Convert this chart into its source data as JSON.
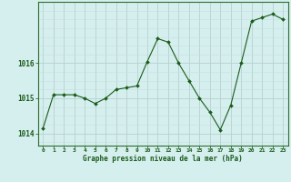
{
  "x": [
    0,
    1,
    2,
    3,
    4,
    5,
    6,
    7,
    8,
    9,
    10,
    11,
    12,
    13,
    14,
    15,
    16,
    17,
    18,
    19,
    20,
    21,
    22,
    23
  ],
  "y": [
    1014.15,
    1015.1,
    1015.1,
    1015.1,
    1015.0,
    1014.85,
    1015.0,
    1015.25,
    1015.3,
    1015.35,
    1016.05,
    1016.7,
    1016.6,
    1016.0,
    1015.5,
    1015.0,
    1014.6,
    1014.1,
    1014.8,
    1016.0,
    1017.2,
    1017.3,
    1017.4,
    1017.25
  ],
  "line_color": "#1a5c1a",
  "marker": "D",
  "marker_size": 2.0,
  "bg_color": "#d5eeee",
  "grid_color_major": "#b8d0d0",
  "grid_color_minor": "#c8dede",
  "spine_color": "#2d6e2d",
  "xlabel": "Graphe pression niveau de la mer (hPa)",
  "xlabel_color": "#1a5c1a",
  "tick_color": "#1a5c1a",
  "ytick_labels": [
    "1014",
    "1015",
    "1016"
  ],
  "ytick_values": [
    1014,
    1015,
    1016
  ],
  "ylim": [
    1013.65,
    1017.75
  ],
  "xlim": [
    -0.5,
    23.5
  ],
  "xtick_values": [
    0,
    1,
    2,
    3,
    4,
    5,
    6,
    7,
    8,
    9,
    10,
    11,
    12,
    13,
    14,
    15,
    16,
    17,
    18,
    19,
    20,
    21,
    22,
    23
  ],
  "figsize": [
    3.2,
    2.0
  ],
  "dpi": 100
}
